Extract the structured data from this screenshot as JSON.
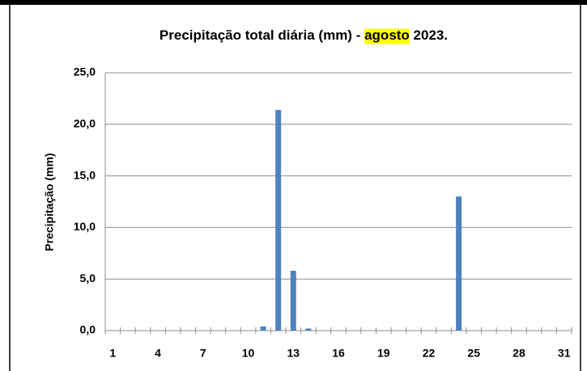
{
  "chart_data": {
    "type": "bar",
    "title": [
      "Precipitação total diária (mm) - ",
      "agosto",
      " 2023."
    ],
    "title_highlight": {
      "index": 1,
      "color": "#ffff00"
    },
    "y_label": "Precipitação (mm)",
    "categories": [
      1,
      null,
      null,
      4,
      null,
      null,
      7,
      null,
      null,
      10,
      null,
      null,
      13,
      null,
      null,
      16,
      null,
      null,
      19,
      null,
      null,
      22,
      null,
      null,
      25,
      null,
      null,
      28,
      null,
      null,
      31
    ],
    "values": [
      0,
      0,
      0,
      0,
      0,
      0,
      0,
      0,
      0,
      0,
      0.4,
      21.4,
      5.8,
      0.2,
      0,
      0,
      0,
      0,
      0,
      0,
      0,
      0,
      0,
      13.0,
      0,
      0,
      0,
      0,
      0,
      0,
      0
    ],
    "color": "#4f81bd",
    "ylim": [
      0,
      25
    ],
    "yticks": [
      {
        "value": 0,
        "label": "0,0"
      },
      {
        "value": 5,
        "label": "5,0"
      },
      {
        "value": 10,
        "label": "10,0"
      },
      {
        "value": 15,
        "label": "15,0"
      },
      {
        "value": 20,
        "label": "20,0"
      },
      {
        "value": 25,
        "label": "25,0"
      }
    ],
    "grid": true
  }
}
